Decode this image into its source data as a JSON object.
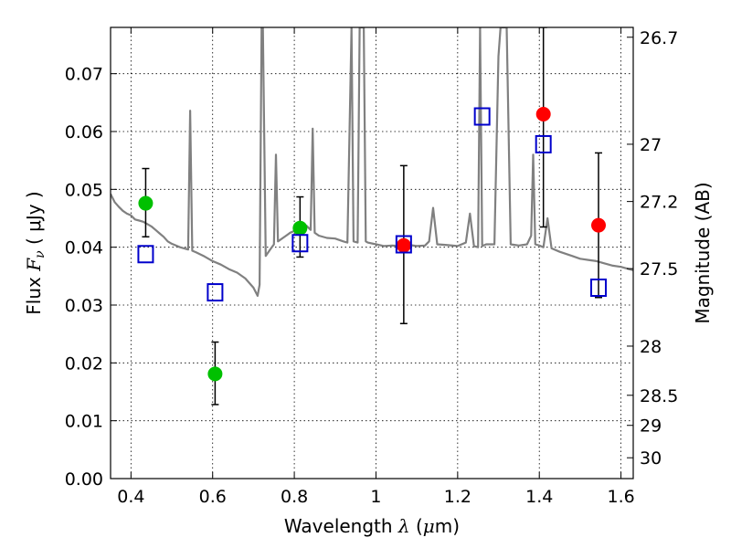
{
  "chart_data": {
    "type": "scatter",
    "title": "",
    "xlabel": {
      "prefix": "Wavelength  ",
      "symbol": "λ",
      "unit_open": " (",
      "unit_mu": "μ",
      "unit_close": "m)"
    },
    "ylabel": {
      "prefix": "Flux  ",
      "symbol": "F",
      "sub": "ν",
      "unit": "  ( μJy )"
    },
    "y2label": "Magnitude (AB)",
    "xlim": [
      0.35,
      1.63
    ],
    "ylim": [
      0.0,
      0.078
    ],
    "xticks": [
      {
        "value": 0.4,
        "label": "0.4"
      },
      {
        "value": 0.6,
        "label": "0.6"
      },
      {
        "value": 0.8,
        "label": "0.8"
      },
      {
        "value": 1.0,
        "label": "1"
      },
      {
        "value": 1.2,
        "label": "1.2"
      },
      {
        "value": 1.4,
        "label": "1.4"
      },
      {
        "value": 1.6,
        "label": "1.6"
      }
    ],
    "yticks": [
      {
        "value": 0.0,
        "label": "0.00"
      },
      {
        "value": 0.01,
        "label": "0.01"
      },
      {
        "value": 0.02,
        "label": "0.02"
      },
      {
        "value": 0.03,
        "label": "0.03"
      },
      {
        "value": 0.04,
        "label": "0.04"
      },
      {
        "value": 0.05,
        "label": "0.05"
      },
      {
        "value": 0.06,
        "label": "0.06"
      },
      {
        "value": 0.07,
        "label": "0.07"
      }
    ],
    "y2ticks": [
      {
        "flux": 0.0763,
        "label": "26.7"
      },
      {
        "flux": 0.0578,
        "label": "27"
      },
      {
        "flux": 0.0479,
        "label": "27.2"
      },
      {
        "flux": 0.0363,
        "label": "27.5"
      },
      {
        "flux": 0.0229,
        "label": "28"
      },
      {
        "flux": 0.0144,
        "label": "28.5"
      },
      {
        "flux": 0.0092,
        "label": "29"
      },
      {
        "flux": 0.0036,
        "label": "30"
      }
    ],
    "grid": true,
    "colors": {
      "model": "#808080",
      "green": "#00c000",
      "red": "#ff0000",
      "box": "#0000cc",
      "errorbar": "#000000"
    },
    "series": [
      {
        "role": "model-spectrum",
        "points": [
          [
            0.35,
            0.0492
          ],
          [
            0.36,
            0.0478
          ],
          [
            0.37,
            0.047
          ],
          [
            0.38,
            0.0463
          ],
          [
            0.39,
            0.0458
          ],
          [
            0.4,
            0.0455
          ],
          [
            0.41,
            0.0448
          ],
          [
            0.42,
            0.0446
          ],
          [
            0.43,
            0.0444
          ],
          [
            0.44,
            0.044
          ],
          [
            0.45,
            0.0436
          ],
          [
            0.46,
            0.043
          ],
          [
            0.47,
            0.0424
          ],
          [
            0.48,
            0.0418
          ],
          [
            0.49,
            0.041
          ],
          [
            0.5,
            0.0406
          ],
          [
            0.52,
            0.04
          ],
          [
            0.54,
            0.0396
          ],
          [
            0.545,
            0.0636
          ],
          [
            0.55,
            0.0394
          ],
          [
            0.56,
            0.0391
          ],
          [
            0.58,
            0.0384
          ],
          [
            0.6,
            0.0376
          ],
          [
            0.62,
            0.037
          ],
          [
            0.64,
            0.0362
          ],
          [
            0.66,
            0.0356
          ],
          [
            0.68,
            0.0346
          ],
          [
            0.7,
            0.033
          ],
          [
            0.71,
            0.0316
          ],
          [
            0.715,
            0.0335
          ],
          [
            0.72,
            0.078
          ],
          [
            0.723,
            0.078
          ],
          [
            0.73,
            0.0385
          ],
          [
            0.74,
            0.0395
          ],
          [
            0.75,
            0.0405
          ],
          [
            0.755,
            0.056
          ],
          [
            0.76,
            0.041
          ],
          [
            0.78,
            0.042
          ],
          [
            0.79,
            0.0425
          ],
          [
            0.8,
            0.0428
          ],
          [
            0.81,
            0.043
          ],
          [
            0.82,
            0.0436
          ],
          [
            0.83,
            0.0437
          ],
          [
            0.84,
            0.043
          ],
          [
            0.845,
            0.0605
          ],
          [
            0.85,
            0.0425
          ],
          [
            0.86,
            0.042
          ],
          [
            0.88,
            0.0416
          ],
          [
            0.9,
            0.0415
          ],
          [
            0.92,
            0.041
          ],
          [
            0.93,
            0.0408
          ],
          [
            0.94,
            0.078
          ],
          [
            0.945,
            0.041
          ],
          [
            0.955,
            0.0408
          ],
          [
            0.96,
            0.078
          ],
          [
            0.97,
            0.078
          ],
          [
            0.975,
            0.041
          ],
          [
            0.98,
            0.0408
          ],
          [
            1.0,
            0.0405
          ],
          [
            1.02,
            0.0402
          ],
          [
            1.04,
            0.0403
          ],
          [
            1.06,
            0.0402
          ],
          [
            1.08,
            0.0404
          ],
          [
            1.1,
            0.0402
          ],
          [
            1.12,
            0.0403
          ],
          [
            1.13,
            0.041
          ],
          [
            1.14,
            0.0468
          ],
          [
            1.15,
            0.0405
          ],
          [
            1.17,
            0.0404
          ],
          [
            1.2,
            0.0402
          ],
          [
            1.22,
            0.0408
          ],
          [
            1.23,
            0.0458
          ],
          [
            1.24,
            0.0402
          ],
          [
            1.25,
            0.04
          ],
          [
            1.255,
            0.078
          ],
          [
            1.26,
            0.0402
          ],
          [
            1.27,
            0.0405
          ],
          [
            1.29,
            0.0405
          ],
          [
            1.3,
            0.073
          ],
          [
            1.305,
            0.078
          ],
          [
            1.32,
            0.078
          ],
          [
            1.33,
            0.0405
          ],
          [
            1.35,
            0.0403
          ],
          [
            1.37,
            0.0405
          ],
          [
            1.38,
            0.042
          ],
          [
            1.385,
            0.056
          ],
          [
            1.39,
            0.0405
          ],
          [
            1.4,
            0.0403
          ],
          [
            1.41,
            0.04
          ],
          [
            1.42,
            0.045
          ],
          [
            1.43,
            0.0398
          ],
          [
            1.45,
            0.0392
          ],
          [
            1.48,
            0.0385
          ],
          [
            1.5,
            0.038
          ],
          [
            1.52,
            0.0378
          ],
          [
            1.54,
            0.0376
          ],
          [
            1.56,
            0.0372
          ],
          [
            1.58,
            0.0368
          ],
          [
            1.6,
            0.0366
          ],
          [
            1.62,
            0.0362
          ],
          [
            1.63,
            0.036
          ]
        ]
      },
      {
        "role": "observed-green",
        "points": [
          {
            "x": 0.436,
            "y": 0.0476,
            "err_lo": 0.0418,
            "err_hi": 0.0536
          },
          {
            "x": 0.606,
            "y": 0.0181,
            "err_lo": 0.0128,
            "err_hi": 0.0236
          },
          {
            "x": 0.814,
            "y": 0.0433,
            "err_lo": 0.0383,
            "err_hi": 0.0487
          }
        ]
      },
      {
        "role": "observed-red",
        "points": [
          {
            "x": 1.068,
            "y": 0.0403,
            "err_lo": 0.0268,
            "err_hi": 0.0541
          },
          {
            "x": 1.41,
            "y": 0.063,
            "err_lo": 0.0435,
            "err_hi": 0.078
          },
          {
            "x": 1.545,
            "y": 0.0438,
            "err_lo": 0.0313,
            "err_hi": 0.0563
          }
        ]
      },
      {
        "role": "model-synthetic-boxes",
        "points": [
          {
            "x": 0.436,
            "y": 0.0388
          },
          {
            "x": 0.606,
            "y": 0.0322
          },
          {
            "x": 0.814,
            "y": 0.0407
          },
          {
            "x": 1.068,
            "y": 0.0405
          },
          {
            "x": 1.26,
            "y": 0.0626
          },
          {
            "x": 1.41,
            "y": 0.0578
          },
          {
            "x": 1.545,
            "y": 0.033
          }
        ]
      }
    ]
  }
}
